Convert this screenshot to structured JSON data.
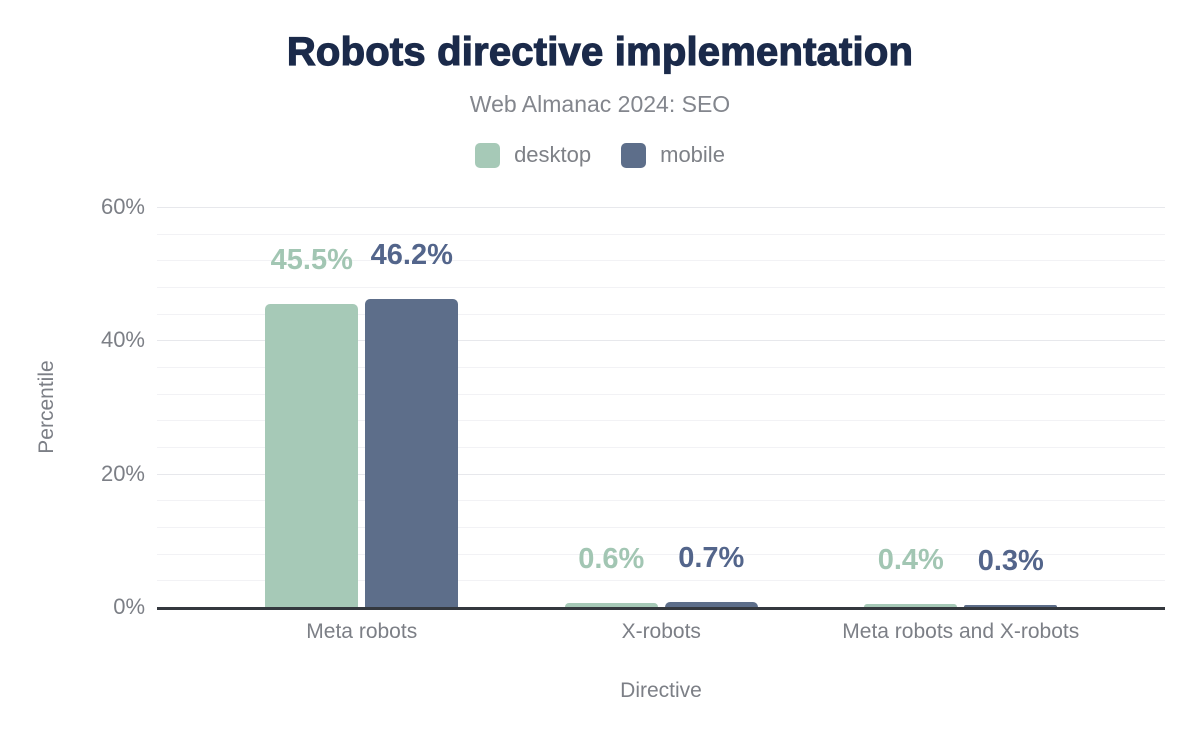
{
  "chart": {
    "title": "Robots directive implementation",
    "subtitle": "Web Almanac 2024: SEO",
    "xlabel": "Directive",
    "ylabel": "Percentile",
    "colors": {
      "background": "#ffffff",
      "title": "#1b2a4a",
      "muted_text": "#7e8187",
      "axis_line": "#34383e",
      "grid_minor": "#f2f2f5",
      "grid_major": "#e7e8ec",
      "desktop": "#a6c9b7",
      "mobile": "#5d6e8a",
      "desktop_value_label": "#a2c6b3",
      "mobile_value_label": "#53658b"
    }
  },
  "chart_data": {
    "type": "bar",
    "title": "Robots directive implementation",
    "subtitle": "Web Almanac 2024: SEO",
    "xlabel": "Directive",
    "ylabel": "Percentile",
    "categories": [
      "Meta robots",
      "X-robots",
      "Meta robots and X-robots"
    ],
    "series": [
      {
        "name": "desktop",
        "color": "#a6c9b7",
        "label_color": "#a2c6b3",
        "values": [
          45.5,
          0.6,
          0.4
        ],
        "value_labels": [
          "45.5%",
          "0.6%",
          "0.4%"
        ]
      },
      {
        "name": "mobile",
        "color": "#5d6e8a",
        "label_color": "#53658b",
        "values": [
          46.2,
          0.7,
          0.3
        ],
        "value_labels": [
          "46.2%",
          "0.7%",
          "0.3%"
        ]
      }
    ],
    "ylim": [
      0,
      60
    ],
    "yticks": [
      0,
      20,
      40,
      60
    ],
    "ytick_labels": [
      "0%",
      "20%",
      "40%",
      "60%"
    ],
    "grid": "horizontal minor gridlines every 4%, labeled major ticks every 20%",
    "legend_position": "top-center"
  }
}
